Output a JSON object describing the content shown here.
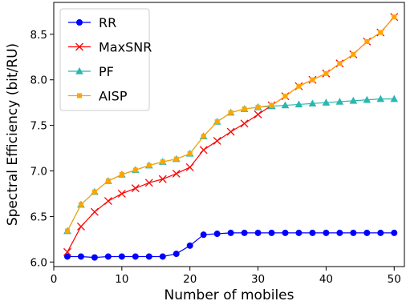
{
  "chart_data": {
    "type": "line",
    "title": "",
    "xlabel": "Number of mobiles",
    "ylabel": "Spectral Efficiency (bit/RU)",
    "xlim": [
      0,
      51.5
    ],
    "ylim": [
      5.95,
      8.85
    ],
    "x_ticks": [
      0,
      10,
      20,
      30,
      40,
      50
    ],
    "y_ticks": [
      6.0,
      6.5,
      7.0,
      7.5,
      8.0,
      8.5
    ],
    "grid": false,
    "legend_position": "top-left",
    "x": [
      2,
      4,
      6,
      8,
      10,
      12,
      14,
      16,
      18,
      20,
      22,
      24,
      26,
      28,
      30,
      32,
      34,
      36,
      38,
      40,
      42,
      44,
      46,
      48,
      50
    ],
    "series": [
      {
        "name": "RR",
        "color": "#0000ff",
        "marker": "circle",
        "values": [
          6.06,
          6.06,
          6.05,
          6.06,
          6.06,
          6.06,
          6.06,
          6.06,
          6.09,
          6.18,
          6.3,
          6.31,
          6.32,
          6.32,
          6.32,
          6.32,
          6.32,
          6.32,
          6.32,
          6.32,
          6.32,
          6.32,
          6.32,
          6.32,
          6.32
        ]
      },
      {
        "name": "MaxSNR",
        "color": "#ff0000",
        "marker": "x",
        "values": [
          6.11,
          6.39,
          6.55,
          6.67,
          6.75,
          6.81,
          6.87,
          6.91,
          6.97,
          7.04,
          7.23,
          7.33,
          7.43,
          7.52,
          7.62,
          7.72,
          7.82,
          7.93,
          8.0,
          8.07,
          8.18,
          8.28,
          8.42,
          8.52,
          8.69
        ]
      },
      {
        "name": "PF",
        "color": "#2ab7b0",
        "marker": "triangle",
        "values": [
          6.34,
          6.63,
          6.77,
          6.89,
          6.96,
          7.01,
          7.06,
          7.1,
          7.13,
          7.19,
          7.38,
          7.54,
          7.64,
          7.68,
          7.7,
          7.71,
          7.72,
          7.73,
          7.74,
          7.75,
          7.76,
          7.77,
          7.78,
          7.79,
          7.79
        ]
      },
      {
        "name": "AISP",
        "color": "#ffa500",
        "marker": "square",
        "values": [
          6.34,
          6.63,
          6.77,
          6.89,
          6.96,
          7.01,
          7.06,
          7.1,
          7.13,
          7.19,
          7.38,
          7.54,
          7.64,
          7.68,
          7.7,
          7.72,
          7.82,
          7.93,
          8.0,
          8.07,
          8.18,
          8.28,
          8.42,
          8.52,
          8.69
        ]
      }
    ]
  }
}
